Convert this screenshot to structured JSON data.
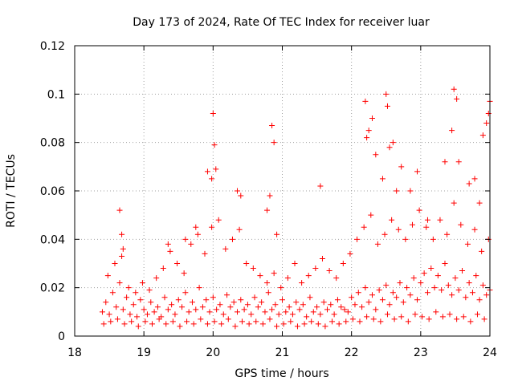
{
  "chart_data": {
    "type": "scatter",
    "title": "Day 173 of 2024, Rate Of TEC Index for receiver luar",
    "xlabel": "GPS time / hours",
    "ylabel": "ROTI / TECUs",
    "xlim": [
      18,
      24
    ],
    "ylim": [
      0,
      0.12
    ],
    "xticks": [
      18,
      19,
      20,
      21,
      22,
      23,
      24
    ],
    "yticks": [
      0,
      0.02,
      0.04,
      0.06,
      0.08,
      0.1,
      0.12
    ],
    "xtick_labels": [
      "18",
      "19",
      "20",
      "21",
      "22",
      "23",
      "24"
    ],
    "ytick_labels": [
      "0",
      "0.02",
      "0.04",
      "0.06",
      "0.08",
      "0.1",
      "0.12"
    ],
    "grid": true,
    "marker": "+",
    "series": [
      {
        "name": "ROTI",
        "color": "#ff0000",
        "x": [
          18.4,
          18.45,
          18.5,
          18.55,
          18.6,
          18.65,
          18.7,
          18.75,
          18.8,
          18.85,
          18.9,
          18.95,
          19.0,
          19.05,
          19.1,
          19.15,
          19.2,
          19.25,
          19.3,
          19.35,
          19.4,
          19.45,
          19.5,
          19.55,
          19.6,
          19.65,
          19.7,
          19.75,
          19.8,
          19.85,
          19.9,
          19.95,
          20.0,
          20.05,
          20.1,
          20.15,
          20.2,
          20.25,
          20.3,
          20.35,
          20.4,
          20.45,
          20.5,
          20.55,
          20.6,
          20.65,
          20.7,
          20.75,
          20.8,
          20.85,
          20.9,
          20.95,
          21.0,
          21.05,
          21.1,
          21.15,
          21.2,
          21.25,
          21.3,
          21.35,
          21.4,
          21.45,
          21.5,
          21.55,
          21.6,
          21.65,
          21.7,
          21.75,
          21.8,
          21.85,
          21.9,
          21.95,
          22.0,
          22.05,
          22.1,
          22.15,
          22.2,
          22.25,
          22.3,
          22.35,
          22.4,
          22.45,
          22.5,
          22.55,
          22.6,
          22.65,
          22.7,
          22.75,
          22.8,
          22.85,
          22.9,
          22.95,
          23.0,
          23.05,
          23.1,
          23.15,
          23.2,
          23.25,
          23.3,
          23.35,
          23.4,
          23.45,
          23.5,
          23.55,
          23.6,
          23.65,
          23.7,
          23.75,
          23.8,
          23.85,
          23.9,
          23.95,
          24.0,
          18.42,
          18.52,
          18.62,
          18.72,
          18.82,
          18.92,
          19.02,
          19.12,
          19.22,
          19.32,
          19.42,
          19.52,
          19.62,
          19.72,
          19.82,
          19.92,
          20.02,
          20.12,
          20.22,
          20.32,
          20.42,
          20.52,
          20.62,
          20.72,
          20.82,
          20.92,
          21.02,
          21.12,
          21.22,
          21.32,
          21.42,
          21.52,
          21.62,
          21.72,
          21.82,
          21.92,
          22.02,
          22.12,
          22.22,
          22.32,
          22.42,
          22.52,
          22.62,
          22.72,
          22.82,
          22.92,
          23.02,
          23.12,
          23.22,
          23.32,
          23.42,
          23.52,
          23.62,
          23.72,
          23.82,
          23.92,
          18.48,
          18.58,
          18.68,
          18.78,
          18.88,
          18.98,
          19.08,
          19.18,
          19.28,
          19.38,
          19.48,
          19.58,
          19.68,
          19.78,
          19.88,
          19.98,
          20.08,
          20.18,
          20.28,
          20.38,
          20.48,
          20.58,
          20.68,
          20.78,
          20.88,
          20.98,
          21.08,
          21.18,
          21.28,
          21.38,
          21.48,
          21.58,
          21.68,
          21.78,
          21.88,
          21.98,
          22.08,
          22.18,
          22.28,
          22.38,
          22.48,
          22.58,
          22.68,
          22.78,
          22.88,
          22.98,
          23.08,
          23.18,
          23.28,
          23.38,
          23.48,
          23.58,
          23.68,
          23.78,
          23.88,
          23.98,
          18.65,
          18.68,
          18.7,
          19.35,
          19.6,
          19.75,
          19.92,
          19.98,
          20.0,
          20.02,
          20.04,
          20.35,
          20.4,
          20.78,
          20.82,
          20.85,
          20.88,
          20.92,
          21.55,
          22.2,
          22.22,
          22.25,
          22.3,
          22.35,
          22.45,
          22.5,
          22.52,
          22.55,
          22.6,
          22.65,
          22.72,
          22.85,
          22.95,
          23.1,
          23.35,
          23.45,
          23.48,
          23.52,
          23.55,
          23.7,
          23.78,
          23.85,
          23.9,
          23.95,
          23.98,
          24.0
        ],
        "y": [
          0.01,
          0.014,
          0.009,
          0.018,
          0.012,
          0.022,
          0.011,
          0.016,
          0.009,
          0.013,
          0.008,
          0.015,
          0.011,
          0.009,
          0.014,
          0.01,
          0.012,
          0.008,
          0.016,
          0.011,
          0.013,
          0.009,
          0.015,
          0.012,
          0.018,
          0.01,
          0.014,
          0.011,
          0.02,
          0.012,
          0.015,
          0.01,
          0.016,
          0.011,
          0.013,
          0.009,
          0.017,
          0.012,
          0.014,
          0.01,
          0.015,
          0.011,
          0.013,
          0.009,
          0.016,
          0.012,
          0.014,
          0.01,
          0.018,
          0.011,
          0.013,
          0.009,
          0.015,
          0.01,
          0.012,
          0.009,
          0.014,
          0.011,
          0.013,
          0.008,
          0.016,
          0.01,
          0.012,
          0.009,
          0.014,
          0.011,
          0.013,
          0.009,
          0.015,
          0.012,
          0.011,
          0.01,
          0.016,
          0.013,
          0.018,
          0.012,
          0.02,
          0.014,
          0.017,
          0.011,
          0.019,
          0.015,
          0.021,
          0.013,
          0.018,
          0.016,
          0.022,
          0.014,
          0.02,
          0.017,
          0.024,
          0.015,
          0.022,
          0.026,
          0.018,
          0.028,
          0.02,
          0.025,
          0.019,
          0.03,
          0.021,
          0.017,
          0.024,
          0.019,
          0.027,
          0.016,
          0.022,
          0.018,
          0.025,
          0.015,
          0.021,
          0.017,
          0.019,
          0.005,
          0.006,
          0.007,
          0.005,
          0.006,
          0.004,
          0.006,
          0.005,
          0.007,
          0.005,
          0.006,
          0.004,
          0.006,
          0.005,
          0.007,
          0.005,
          0.006,
          0.005,
          0.007,
          0.004,
          0.006,
          0.005,
          0.006,
          0.005,
          0.007,
          0.004,
          0.005,
          0.006,
          0.004,
          0.005,
          0.006,
          0.005,
          0.004,
          0.006,
          0.005,
          0.006,
          0.007,
          0.006,
          0.008,
          0.007,
          0.006,
          0.009,
          0.007,
          0.008,
          0.006,
          0.009,
          0.008,
          0.007,
          0.01,
          0.008,
          0.009,
          0.007,
          0.008,
          0.006,
          0.009,
          0.007,
          0.025,
          0.03,
          0.033,
          0.02,
          0.018,
          0.022,
          0.019,
          0.024,
          0.028,
          0.035,
          0.03,
          0.026,
          0.038,
          0.042,
          0.034,
          0.045,
          0.048,
          0.036,
          0.04,
          0.044,
          0.03,
          0.028,
          0.025,
          0.022,
          0.026,
          0.02,
          0.024,
          0.03,
          0.022,
          0.025,
          0.028,
          0.032,
          0.027,
          0.024,
          0.03,
          0.034,
          0.04,
          0.045,
          0.05,
          0.038,
          0.042,
          0.048,
          0.044,
          0.04,
          0.046,
          0.052,
          0.045,
          0.04,
          0.048,
          0.042,
          0.055,
          0.046,
          0.038,
          0.044,
          0.035,
          0.04,
          0.052,
          0.042,
          0.036,
          0.038,
          0.04,
          0.045,
          0.068,
          0.065,
          0.092,
          0.079,
          0.069,
          0.06,
          0.058,
          0.052,
          0.058,
          0.087,
          0.08,
          0.042,
          0.062,
          0.097,
          0.082,
          0.085,
          0.09,
          0.075,
          0.065,
          0.1,
          0.095,
          0.078,
          0.08,
          0.06,
          0.07,
          0.06,
          0.068,
          0.048,
          0.072,
          0.085,
          0.102,
          0.098,
          0.072,
          0.063,
          0.065,
          0.055,
          0.083,
          0.088,
          0.092,
          0.097
        ]
      }
    ]
  }
}
